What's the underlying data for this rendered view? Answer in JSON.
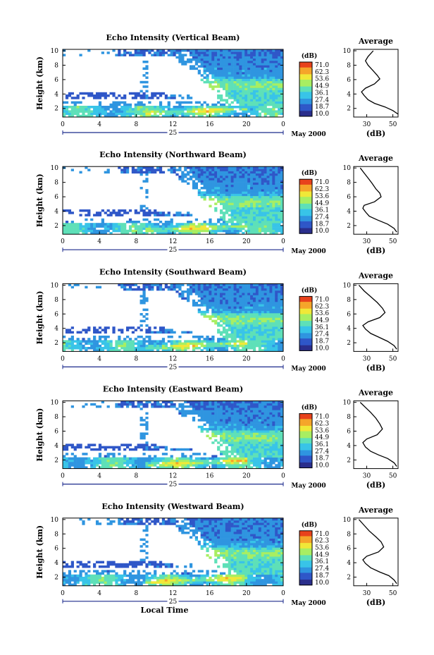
{
  "figure": {
    "x_tick_labels": [
      "0",
      "4",
      "8",
      "12",
      "16",
      "20",
      "0"
    ],
    "day_label": "25",
    "date_label": "May 2000",
    "xlabel": "Local Time",
    "ylabel": "Height (km)",
    "colorbar_unit": "(dB)",
    "colorbar_ticks": [
      "71.0",
      "62.3",
      "53.6",
      "44.9",
      "36.1",
      "27.4",
      "18.7",
      "10.0"
    ],
    "colorbar_colors": [
      "#2a2e8c",
      "#2f57c8",
      "#2f95e0",
      "#38c4e8",
      "#5ee0b8",
      "#a8ee62",
      "#f0e838",
      "#f5a52a",
      "#e8421c"
    ],
    "avg_title": "Average",
    "avg_xlabel": "(dB)",
    "avg_x_tick_labels": [
      "30",
      "50"
    ]
  },
  "chart_data": [
    {
      "type": "heatmap",
      "title": "Echo Intensity (Vertical Beam)",
      "xlabel": "",
      "ylabel": "Height (km)",
      "xlim": [
        0,
        24
      ],
      "ylim": [
        0.8,
        10.2
      ],
      "x_ticks": [
        0,
        4,
        8,
        12,
        16,
        20,
        24
      ],
      "y_ticks": [
        2,
        4,
        6,
        8,
        10
      ],
      "zlim": [
        10.0,
        71.0
      ],
      "zunit": "dB",
      "profile": {
        "title": "Average",
        "xlabel": "(dB)",
        "xlim": [
          20,
          54
        ],
        "x_ticks": [
          30,
          50
        ],
        "points": [
          [
            35,
            10
          ],
          [
            31,
            9.2
          ],
          [
            29,
            8.6
          ],
          [
            31,
            8
          ],
          [
            35,
            7.2
          ],
          [
            38,
            6.6
          ],
          [
            40,
            6.1
          ],
          [
            36,
            5.4
          ],
          [
            29,
            4.8
          ],
          [
            26,
            4.3
          ],
          [
            28,
            3.8
          ],
          [
            31,
            3.2
          ],
          [
            36,
            2.7
          ],
          [
            44,
            2.2
          ],
          [
            50,
            1.7
          ],
          [
            54,
            1.2
          ]
        ]
      }
    },
    {
      "type": "heatmap",
      "title": "Echo Intensity (Northward Beam)",
      "xlabel": "",
      "ylabel": "Height (km)",
      "xlim": [
        0,
        24
      ],
      "ylim": [
        0.8,
        10.2
      ],
      "x_ticks": [
        0,
        4,
        8,
        12,
        16,
        20,
        24
      ],
      "y_ticks": [
        2,
        4,
        6,
        8,
        10
      ],
      "zlim": [
        10.0,
        71.0
      ],
      "zunit": "dB",
      "profile": {
        "title": "Average",
        "xlabel": "(dB)",
        "xlim": [
          20,
          54
        ],
        "x_ticks": [
          30,
          50
        ],
        "points": [
          [
            25,
            10
          ],
          [
            28,
            9.3
          ],
          [
            31,
            8.6
          ],
          [
            34,
            7.9
          ],
          [
            37,
            7.1
          ],
          [
            40,
            6.5
          ],
          [
            41,
            6
          ],
          [
            36,
            5.3
          ],
          [
            28,
            4.8
          ],
          [
            27,
            4.4
          ],
          [
            29,
            3.9
          ],
          [
            32,
            3.3
          ],
          [
            38,
            2.8
          ],
          [
            46,
            2.2
          ],
          [
            51,
            1.6
          ],
          [
            53,
            1.1
          ]
        ]
      }
    },
    {
      "type": "heatmap",
      "title": "Echo Intensity (Southward Beam)",
      "xlabel": "",
      "ylabel": "Height (km)",
      "xlim": [
        0,
        24
      ],
      "ylim": [
        0.8,
        10.2
      ],
      "x_ticks": [
        0,
        4,
        8,
        12,
        16,
        20,
        24
      ],
      "y_ticks": [
        2,
        4,
        6,
        8,
        10
      ],
      "zlim": [
        10.0,
        71.0
      ],
      "zunit": "dB",
      "profile": {
        "title": "Average",
        "xlabel": "(dB)",
        "xlim": [
          20,
          54
        ],
        "x_ticks": [
          30,
          50
        ],
        "points": [
          [
            24,
            10
          ],
          [
            28,
            9.2
          ],
          [
            33,
            8.4
          ],
          [
            38,
            7.6
          ],
          [
            42,
            6.8
          ],
          [
            44,
            6.2
          ],
          [
            40,
            5.5
          ],
          [
            31,
            4.9
          ],
          [
            27,
            4.4
          ],
          [
            29,
            3.9
          ],
          [
            33,
            3.3
          ],
          [
            39,
            2.8
          ],
          [
            46,
            2.2
          ],
          [
            51,
            1.6
          ],
          [
            53,
            1.1
          ]
        ]
      }
    },
    {
      "type": "heatmap",
      "title": "Echo Intensity (Eastward Beam)",
      "xlabel": "",
      "ylabel": "Height (km)",
      "xlim": [
        0,
        24
      ],
      "ylim": [
        0.8,
        10.2
      ],
      "x_ticks": [
        0,
        4,
        8,
        12,
        16,
        20,
        24
      ],
      "y_ticks": [
        2,
        4,
        6,
        8,
        10
      ],
      "zlim": [
        10.0,
        71.0
      ],
      "zunit": "dB",
      "profile": {
        "title": "Average",
        "xlabel": "(dB)",
        "xlim": [
          20,
          54
        ],
        "x_ticks": [
          30,
          50
        ],
        "points": [
          [
            25,
            10
          ],
          [
            29,
            9.3
          ],
          [
            33,
            8.6
          ],
          [
            37,
            7.8
          ],
          [
            40,
            7
          ],
          [
            42,
            6.3
          ],
          [
            38,
            5.5
          ],
          [
            30,
            4.9
          ],
          [
            27,
            4.4
          ],
          [
            29,
            3.8
          ],
          [
            33,
            3.2
          ],
          [
            39,
            2.7
          ],
          [
            46,
            2.2
          ],
          [
            51,
            1.6
          ],
          [
            53,
            1.1
          ]
        ]
      }
    },
    {
      "type": "heatmap",
      "title": "Echo Intensity (Westward Beam)",
      "xlabel": "Local Time",
      "ylabel": "Height (km)",
      "xlim": [
        0,
        24
      ],
      "ylim": [
        0.8,
        10.2
      ],
      "x_ticks": [
        0,
        4,
        8,
        12,
        16,
        20,
        24
      ],
      "y_ticks": [
        2,
        4,
        6,
        8,
        10
      ],
      "zlim": [
        10.0,
        71.0
      ],
      "zunit": "dB",
      "profile": {
        "title": "Average",
        "xlabel": "(dB)",
        "xlim": [
          20,
          54
        ],
        "x_ticks": [
          30,
          50
        ],
        "points": [
          [
            24,
            10
          ],
          [
            28,
            9.2
          ],
          [
            32,
            8.4
          ],
          [
            37,
            7.6
          ],
          [
            41,
            6.9
          ],
          [
            43,
            6.2
          ],
          [
            39,
            5.5
          ],
          [
            30,
            4.9
          ],
          [
            27,
            4.4
          ],
          [
            29,
            3.9
          ],
          [
            33,
            3.3
          ],
          [
            40,
            2.7
          ],
          [
            47,
            2.2
          ],
          [
            51,
            1.6
          ],
          [
            53,
            1.1
          ]
        ]
      }
    }
  ]
}
